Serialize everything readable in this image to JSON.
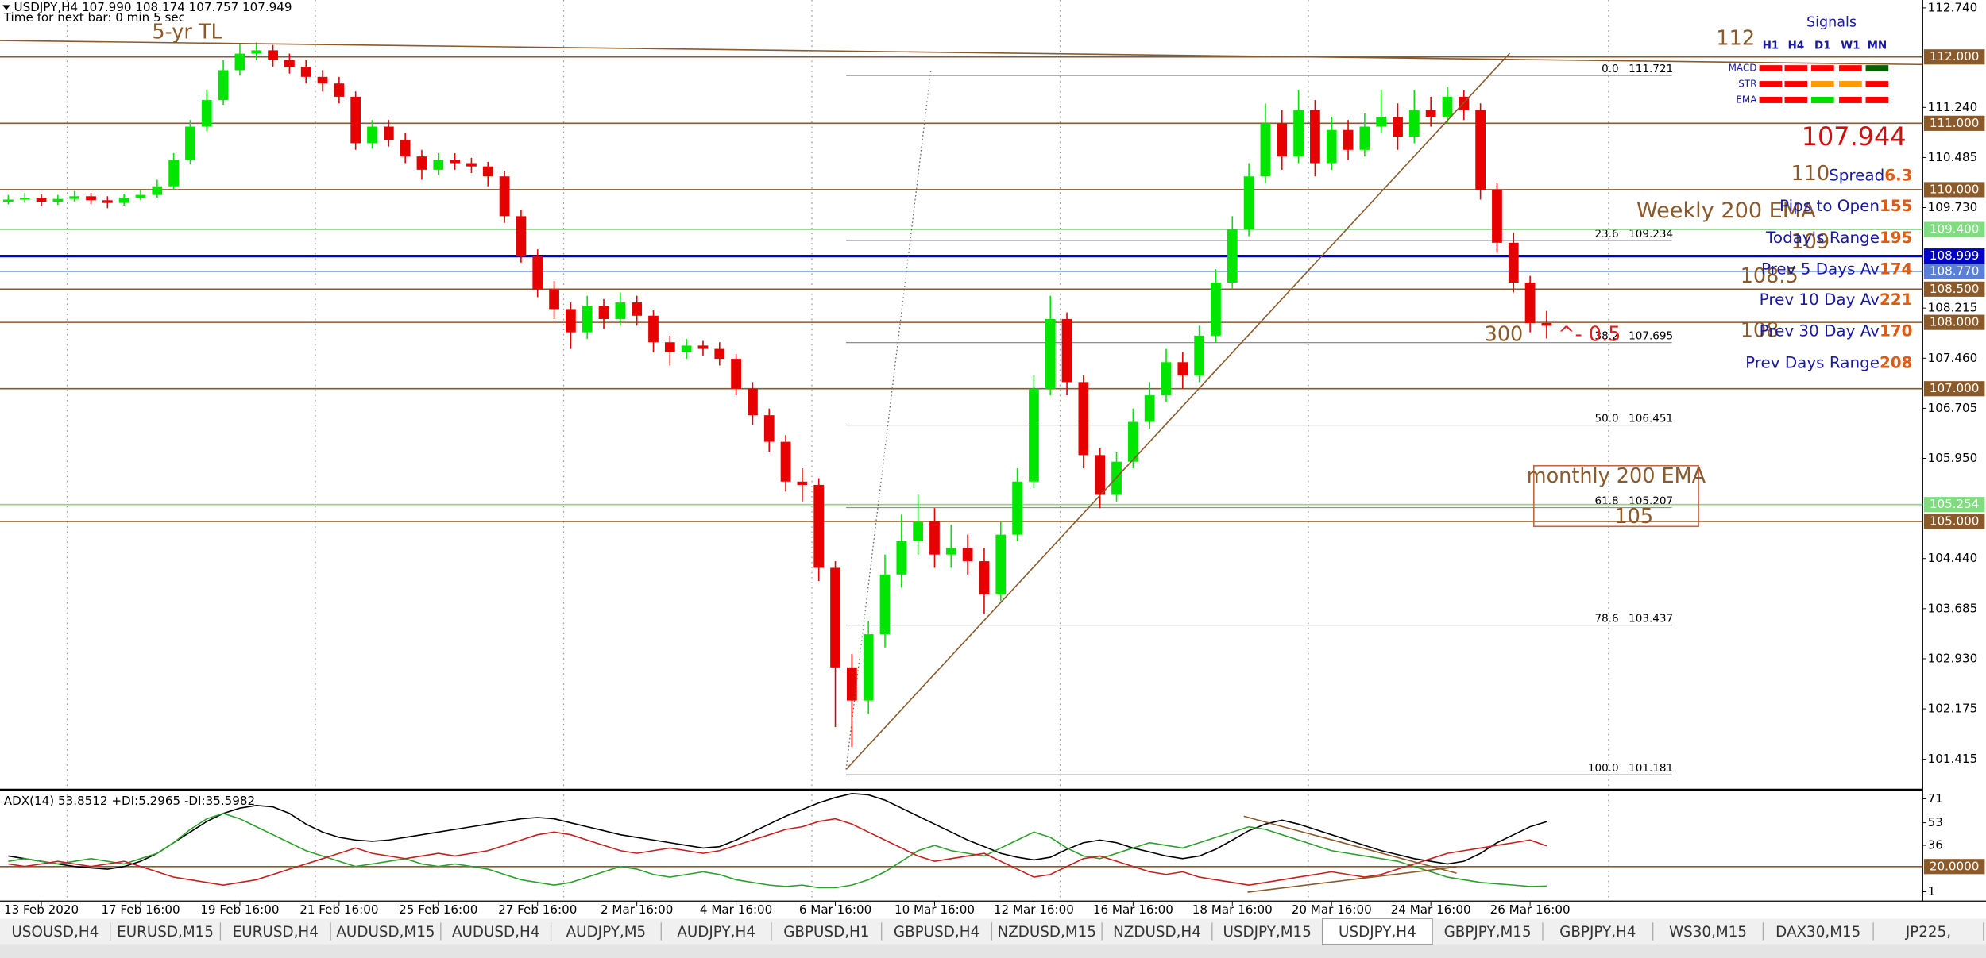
{
  "chart_data": {
    "type": "candlestick",
    "title": "USDJPY,H4  107.990 108.174 107.757 107.949",
    "subtitle": "Time for next bar: 0 min 5 sec",
    "up_color": "#00e600",
    "down_color": "#e60000",
    "categories": [
      null,
      null,
      "13 Feb 2020",
      null,
      null,
      null,
      null,
      null,
      "17 Feb 16:00",
      null,
      null,
      null,
      null,
      null,
      "19 Feb 16:00",
      null,
      null,
      null,
      null,
      null,
      "21 Feb 16:00",
      null,
      null,
      null,
      null,
      null,
      "25 Feb 16:00",
      null,
      null,
      null,
      null,
      null,
      "27 Feb 16:00",
      null,
      null,
      null,
      null,
      null,
      "2 Mar 16:00",
      null,
      null,
      null,
      null,
      null,
      "4 Mar 16:00",
      null,
      null,
      null,
      null,
      null,
      "6 Mar 16:00",
      null,
      null,
      null,
      null,
      null,
      "10 Mar 16:00",
      null,
      null,
      null,
      null,
      null,
      "12 Mar 16:00",
      null,
      null,
      null,
      null,
      null,
      "16 Mar 16:00",
      null,
      null,
      null,
      null,
      null,
      "18 Mar 16:00",
      null,
      null,
      null,
      null,
      null,
      "20 Mar 16:00",
      null,
      null,
      null,
      null,
      null,
      "24 Mar 16:00",
      null,
      null,
      null,
      null,
      null,
      "26 Mar 16:00",
      null
    ],
    "open": [
      109.82,
      109.85,
      109.88,
      109.82,
      109.86,
      109.9,
      109.84,
      109.8,
      109.88,
      109.92,
      110.05,
      110.45,
      110.95,
      111.35,
      111.8,
      112.05,
      112.1,
      111.95,
      111.85,
      111.7,
      111.6,
      111.4,
      110.7,
      110.95,
      110.75,
      110.5,
      110.3,
      110.45,
      110.4,
      110.35,
      110.2,
      109.6,
      109.0,
      108.5,
      108.2,
      107.85,
      108.25,
      108.05,
      108.3,
      108.1,
      107.7,
      107.55,
      107.65,
      107.6,
      107.45,
      107.0,
      106.6,
      106.2,
      105.6,
      105.55,
      104.3,
      102.8,
      102.3,
      103.3,
      104.2,
      104.7,
      105.0,
      104.5,
      104.6,
      104.4,
      103.9,
      104.8,
      105.6,
      107.0,
      108.05,
      107.1,
      106.0,
      105.4,
      105.9,
      106.5,
      106.9,
      107.4,
      107.2,
      107.8,
      108.6,
      109.4,
      110.2,
      111.0,
      110.5,
      111.2,
      110.4,
      110.9,
      110.6,
      110.95,
      111.1,
      110.8,
      111.2,
      111.1,
      111.4,
      111.2,
      110.0,
      109.2,
      108.6,
      107.99
    ],
    "high": [
      109.92,
      109.95,
      109.93,
      109.92,
      109.98,
      109.95,
      109.9,
      109.94,
      110.0,
      110.15,
      110.55,
      111.05,
      111.5,
      111.95,
      112.2,
      112.22,
      112.18,
      112.05,
      111.95,
      111.8,
      111.7,
      111.48,
      111.05,
      111.05,
      110.85,
      110.6,
      110.55,
      110.55,
      110.48,
      110.42,
      110.28,
      109.7,
      109.1,
      108.62,
      108.3,
      108.4,
      108.35,
      108.45,
      108.4,
      108.18,
      107.8,
      107.75,
      107.72,
      107.7,
      107.52,
      107.1,
      106.7,
      106.3,
      105.8,
      105.65,
      104.4,
      103.0,
      103.5,
      104.5,
      105.1,
      105.4,
      105.2,
      104.95,
      104.8,
      104.6,
      105.0,
      105.8,
      107.2,
      108.4,
      108.15,
      107.2,
      106.1,
      106.05,
      106.7,
      107.1,
      107.6,
      107.55,
      107.95,
      108.8,
      109.6,
      110.4,
      111.3,
      111.2,
      111.5,
      111.35,
      111.1,
      111.05,
      111.15,
      111.5,
      111.3,
      111.5,
      111.4,
      111.55,
      111.5,
      111.3,
      110.1,
      109.35,
      108.7,
      108.174
    ],
    "low": [
      109.78,
      109.8,
      109.76,
      109.77,
      109.82,
      109.78,
      109.72,
      109.76,
      109.84,
      109.88,
      110.0,
      110.38,
      110.88,
      111.28,
      111.72,
      111.95,
      111.85,
      111.75,
      111.6,
      111.48,
      111.3,
      110.6,
      110.62,
      110.65,
      110.4,
      110.15,
      110.22,
      110.3,
      110.25,
      110.05,
      109.5,
      108.9,
      108.38,
      108.05,
      107.6,
      107.75,
      107.9,
      107.95,
      107.95,
      107.55,
      107.35,
      107.45,
      107.5,
      107.35,
      106.9,
      106.45,
      106.05,
      105.45,
      105.3,
      104.1,
      101.9,
      101.6,
      102.1,
      103.1,
      104.0,
      104.5,
      104.3,
      104.3,
      104.2,
      103.6,
      103.8,
      104.7,
      105.5,
      106.9,
      106.9,
      105.8,
      105.2,
      105.3,
      105.8,
      106.4,
      106.8,
      107.0,
      107.1,
      107.7,
      108.5,
      109.3,
      110.1,
      110.3,
      110.4,
      110.2,
      110.3,
      110.45,
      110.5,
      110.85,
      110.6,
      110.7,
      110.95,
      111.0,
      111.05,
      109.85,
      109.05,
      108.45,
      107.85,
      107.757
    ],
    "close": [
      109.85,
      109.88,
      109.82,
      109.86,
      109.9,
      109.84,
      109.8,
      109.88,
      109.92,
      110.05,
      110.45,
      110.95,
      111.35,
      111.8,
      112.05,
      112.1,
      111.95,
      111.85,
      111.7,
      111.6,
      111.4,
      110.7,
      110.95,
      110.75,
      110.5,
      110.3,
      110.45,
      110.4,
      110.35,
      110.2,
      109.6,
      109.0,
      108.5,
      108.2,
      107.85,
      108.25,
      108.05,
      108.3,
      108.1,
      107.7,
      107.55,
      107.65,
      107.6,
      107.45,
      107.0,
      106.6,
      106.2,
      105.6,
      105.55,
      104.3,
      102.8,
      102.3,
      103.3,
      104.2,
      104.7,
      105.0,
      104.5,
      104.6,
      104.4,
      103.9,
      104.8,
      105.6,
      107.0,
      108.05,
      107.1,
      106.0,
      105.4,
      105.9,
      106.5,
      106.9,
      107.4,
      107.2,
      107.8,
      108.6,
      109.4,
      110.2,
      111.0,
      110.5,
      111.2,
      110.4,
      110.9,
      110.6,
      110.95,
      111.1,
      110.8,
      111.2,
      111.1,
      111.4,
      111.2,
      110.0,
      109.2,
      108.6,
      107.99,
      107.949
    ],
    "ylim": [
      100.995,
      112.858
    ],
    "yticks": [
      {
        "value": 112.74,
        "label": "112.740"
      },
      {
        "value": 111.24,
        "label": "111.240"
      },
      {
        "value": 110.485,
        "label": "110.485"
      },
      {
        "value": 109.73,
        "label": "109.730"
      },
      {
        "value": 108.215,
        "label": "108.215"
      },
      {
        "value": 107.46,
        "label": "107.460"
      },
      {
        "value": 106.705,
        "label": "106.705"
      },
      {
        "value": 105.95,
        "label": "105.950"
      },
      {
        "value": 104.44,
        "label": "104.440"
      },
      {
        "value": 103.685,
        "label": "103.685"
      },
      {
        "value": 102.93,
        "label": "102.930"
      },
      {
        "value": 102.175,
        "label": "102.175"
      },
      {
        "value": 101.415,
        "label": "101.415"
      }
    ],
    "levels": [
      {
        "value": 112,
        "label": "112.000",
        "color": "#8b5a2b"
      },
      {
        "value": 111,
        "label": "111.000",
        "color": "#8b5a2b"
      },
      {
        "value": 110,
        "label": "110.000",
        "color": "#8b5a2b"
      },
      {
        "value": 109.4,
        "label": "109.400",
        "color": "#7fdc7f"
      },
      {
        "value": 108.77,
        "label": "108.770",
        "color": "#5a7fd8"
      },
      {
        "value": 108.999,
        "label": "108.999",
        "color": "#0000c8"
      },
      {
        "value": 108.5,
        "label": "108.500",
        "color": "#8b5a2b"
      },
      {
        "value": 108,
        "label": "108.000",
        "color": "#8b5a2b"
      },
      {
        "value": 107,
        "label": "107.000",
        "color": "#8b5a2b"
      },
      {
        "value": 105.254,
        "label": "105.254",
        "color": "#7fdc7f"
      },
      {
        "value": 105,
        "label": "105.000",
        "color": "#8b5a2b"
      }
    ],
    "fibonacci": [
      {
        "ratio": "0.0",
        "price": 111.721
      },
      {
        "ratio": "23.6",
        "price": 109.234
      },
      {
        "ratio": "38.2",
        "price": 107.695
      },
      {
        "ratio": "50.0",
        "price": 106.451
      },
      {
        "ratio": "61.8",
        "price": 105.207
      },
      {
        "ratio": "78.6",
        "price": 103.437
      },
      {
        "ratio": "100.0",
        "price": 101.181
      }
    ],
    "indicator": {
      "title": "ADX(14) 53.8512 +DI:5.2965 -DI:35.5982",
      "ylim": [
        -6,
        77
      ],
      "yticks": [
        71,
        53,
        36,
        1
      ],
      "level": {
        "value": 20,
        "label": "20.0000",
        "color": "#8b5a2b"
      },
      "series": [
        {
          "color": "#000000",
          "values": [
            28,
            26,
            24,
            22,
            20,
            19,
            18,
            20,
            24,
            30,
            38,
            46,
            54,
            60,
            64,
            66,
            65,
            60,
            52,
            46,
            42,
            40,
            39,
            40,
            42,
            44,
            46,
            48,
            50,
            52,
            54,
            56,
            57,
            56,
            53,
            50,
            47,
            44,
            42,
            40,
            38,
            36,
            34,
            35,
            40,
            46,
            52,
            58,
            63,
            68,
            72,
            75,
            74,
            70,
            64,
            58,
            52,
            46,
            40,
            35,
            30,
            27,
            25,
            27,
            33,
            38,
            40,
            38,
            34,
            31,
            28,
            26,
            28,
            33,
            40,
            47,
            52,
            55,
            52,
            48,
            44,
            40,
            36,
            32,
            29,
            26,
            24,
            22,
            24,
            30,
            38,
            44,
            50,
            53.8512
          ]
        },
        {
          "color": "#2ca02c",
          "values": [
            24,
            26,
            24,
            22,
            24,
            26,
            24,
            22,
            26,
            30,
            38,
            48,
            56,
            60,
            56,
            50,
            44,
            38,
            32,
            28,
            24,
            20,
            22,
            24,
            26,
            22,
            20,
            22,
            20,
            18,
            14,
            10,
            8,
            6,
            8,
            12,
            16,
            20,
            18,
            14,
            12,
            14,
            16,
            14,
            10,
            8,
            6,
            5,
            6,
            4,
            4,
            6,
            10,
            16,
            24,
            32,
            36,
            32,
            30,
            28,
            34,
            40,
            46,
            42,
            34,
            28,
            26,
            30,
            34,
            38,
            36,
            34,
            38,
            42,
            46,
            50,
            48,
            44,
            40,
            36,
            32,
            30,
            28,
            26,
            24,
            20,
            16,
            12,
            10,
            8,
            7,
            6,
            5,
            5.2965
          ]
        },
        {
          "color": "#c81e1e",
          "values": [
            22,
            20,
            22,
            24,
            22,
            20,
            22,
            24,
            20,
            16,
            12,
            10,
            8,
            6,
            8,
            10,
            14,
            18,
            22,
            26,
            30,
            34,
            30,
            28,
            26,
            28,
            30,
            28,
            30,
            32,
            36,
            40,
            44,
            46,
            44,
            40,
            36,
            32,
            30,
            32,
            34,
            32,
            30,
            32,
            36,
            40,
            44,
            48,
            50,
            54,
            56,
            52,
            46,
            40,
            34,
            28,
            24,
            26,
            28,
            30,
            24,
            18,
            12,
            14,
            20,
            26,
            28,
            24,
            20,
            16,
            14,
            16,
            12,
            10,
            8,
            6,
            8,
            10,
            12,
            14,
            16,
            14,
            12,
            14,
            18,
            22,
            26,
            30,
            32,
            34,
            36,
            38,
            40,
            35.5982
          ]
        }
      ]
    }
  },
  "annotations": [
    "5-yr TL",
    "112",
    "110",
    "Weekly 200 EMA",
    "109",
    "108.5",
    "108",
    "300",
    "^- 0.5",
    "monthly 200 EMA",
    "105"
  ],
  "bid": 107.944,
  "signals": {
    "title": "Signals",
    "columns": [
      "H1",
      "H4",
      "D1",
      "W1",
      "MN"
    ],
    "rows": [
      {
        "name": "MACD",
        "colors": [
          "#ff0000",
          "#ff0000",
          "#ff0000",
          "#ff0000",
          "#006400"
        ]
      },
      {
        "name": "STR",
        "colors": [
          "#ff0000",
          "#ff0000",
          "#ff9900",
          "#ff9900",
          "#ff0000"
        ]
      },
      {
        "name": "EMA",
        "colors": [
          "#ff0000",
          "#ff0000",
          "#00dd00",
          "#ff0000",
          "#ff0000"
        ]
      }
    ]
  },
  "stats": [
    {
      "label": "Spread",
      "value": 6.3
    },
    {
      "label": "Pips to Open",
      "value": 155
    },
    {
      "label": "Today's Range",
      "value": 195
    },
    {
      "label": "Prev 5 Days Av",
      "value": 174
    },
    {
      "label": "Prev 10 Day Av",
      "value": 221
    },
    {
      "label": "Prev 30 Day Av",
      "value": 170
    },
    {
      "label": "Prev Days Range",
      "value": 208
    }
  ],
  "tabs": [
    {
      "label": "USOUSD,H4"
    },
    {
      "label": "EURUSD,M15"
    },
    {
      "label": "EURUSD,H4"
    },
    {
      "label": "AUDUSD,M15"
    },
    {
      "label": "AUDUSD,H4"
    },
    {
      "label": "AUDJPY,M5"
    },
    {
      "label": "AUDJPY,H4"
    },
    {
      "label": "GBPUSD,H1"
    },
    {
      "label": "GBPUSD,H4"
    },
    {
      "label": "NZDUSD,M15"
    },
    {
      "label": "NZDUSD,H4"
    },
    {
      "label": "USDJPY,M15"
    },
    {
      "label": "USDJPY,H4",
      "active": true
    },
    {
      "label": "GBPJPY,M15"
    },
    {
      "label": "GBPJPY,H4"
    },
    {
      "label": "WS30,M15"
    },
    {
      "label": "DAX30,M15"
    },
    {
      "label": "JP225,"
    }
  ]
}
